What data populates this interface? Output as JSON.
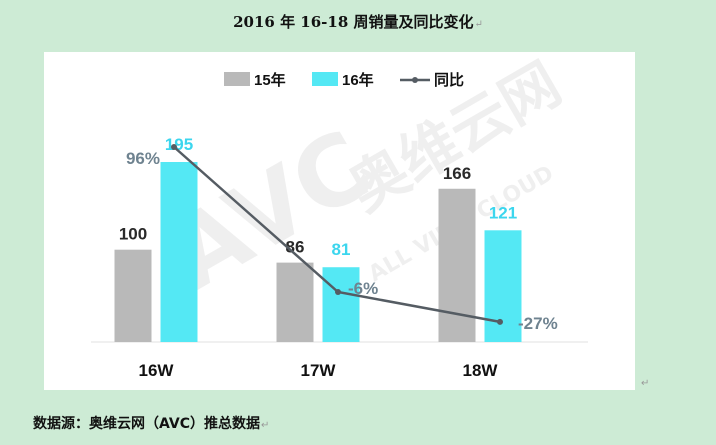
{
  "doc": {
    "title": "2016 年 16-18 周销量及同比变化",
    "source_note": "数据源：奥维云网（AVC）推总数据"
  },
  "watermark": {
    "brand": "奥维云网",
    "english": "ALL VIEW CLOUD",
    "logo": "AVC"
  },
  "chart_data": {
    "type": "bar",
    "title": "",
    "xlabel": "",
    "ylabel": "",
    "categories": [
      "16W",
      "17W",
      "18W"
    ],
    "series": [
      {
        "name": "15年",
        "values": [
          100,
          86,
          166
        ],
        "color": "#b9b9b9"
      },
      {
        "name": "16年",
        "values": [
          195,
          81,
          121
        ],
        "color": "#54e8f4"
      }
    ],
    "line_series": {
      "name": "同比",
      "values": [
        96,
        -6,
        -27
      ],
      "value_labels": [
        "96%",
        "-6%",
        "-27%"
      ],
      "color": "#555c63"
    },
    "ylim": [
      0,
      210
    ],
    "grid": false,
    "legend_position": "top-center",
    "label_colors": {
      "15年": "#2a2a2a",
      "16年": "#3cd6ee",
      "同比": "#6f8390"
    }
  }
}
